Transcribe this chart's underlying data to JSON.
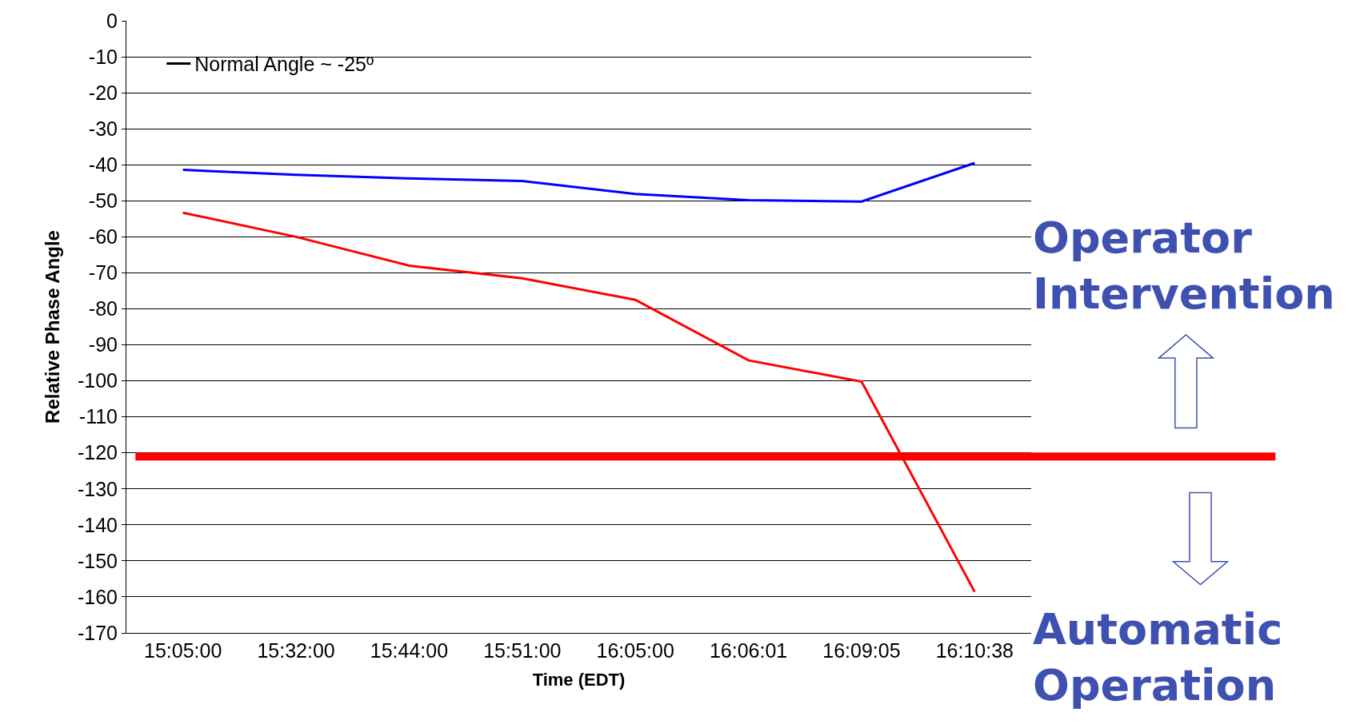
{
  "chart_data": {
    "type": "line",
    "xlabel": "Time (EDT)",
    "ylabel": "Relative Phase Angle",
    "categories": [
      "15:05:00",
      "15:32:00",
      "15:44:00",
      "15:51:00",
      "16:05:00",
      "16:06:01",
      "16:09:05",
      "16:10:38"
    ],
    "series": [
      {
        "name": "Normal Angle ~ -25º",
        "color": "#000000",
        "values": [
          null,
          null,
          null,
          null,
          null,
          null,
          null,
          null
        ]
      },
      {
        "color": "#0000ff",
        "values": [
          -41.4,
          -42.8,
          -43.8,
          -44.5,
          -48.1,
          -49.8,
          -50.2,
          -39.5
        ]
      },
      {
        "color": "#ff0000",
        "values": [
          -53.3,
          -60,
          -68,
          -71.5,
          -77.5,
          -94.3,
          -100.2,
          -158.6
        ]
      }
    ],
    "ylim": [
      -170,
      0
    ],
    "yticks": [
      0,
      -10,
      -20,
      -30,
      -40,
      -50,
      -60,
      -70,
      -80,
      -90,
      -100,
      -110,
      -120,
      -130,
      -140,
      -150,
      -160,
      -170
    ],
    "ref_lines": [
      {
        "axis": "y",
        "value": -121,
        "color": "#ff0000"
      }
    ],
    "annotations": [
      "Operator Intervention",
      "Automatic Operation"
    ],
    "grid": "y",
    "legend": "top left",
    "marker": "none",
    "line_style": "solid"
  }
}
